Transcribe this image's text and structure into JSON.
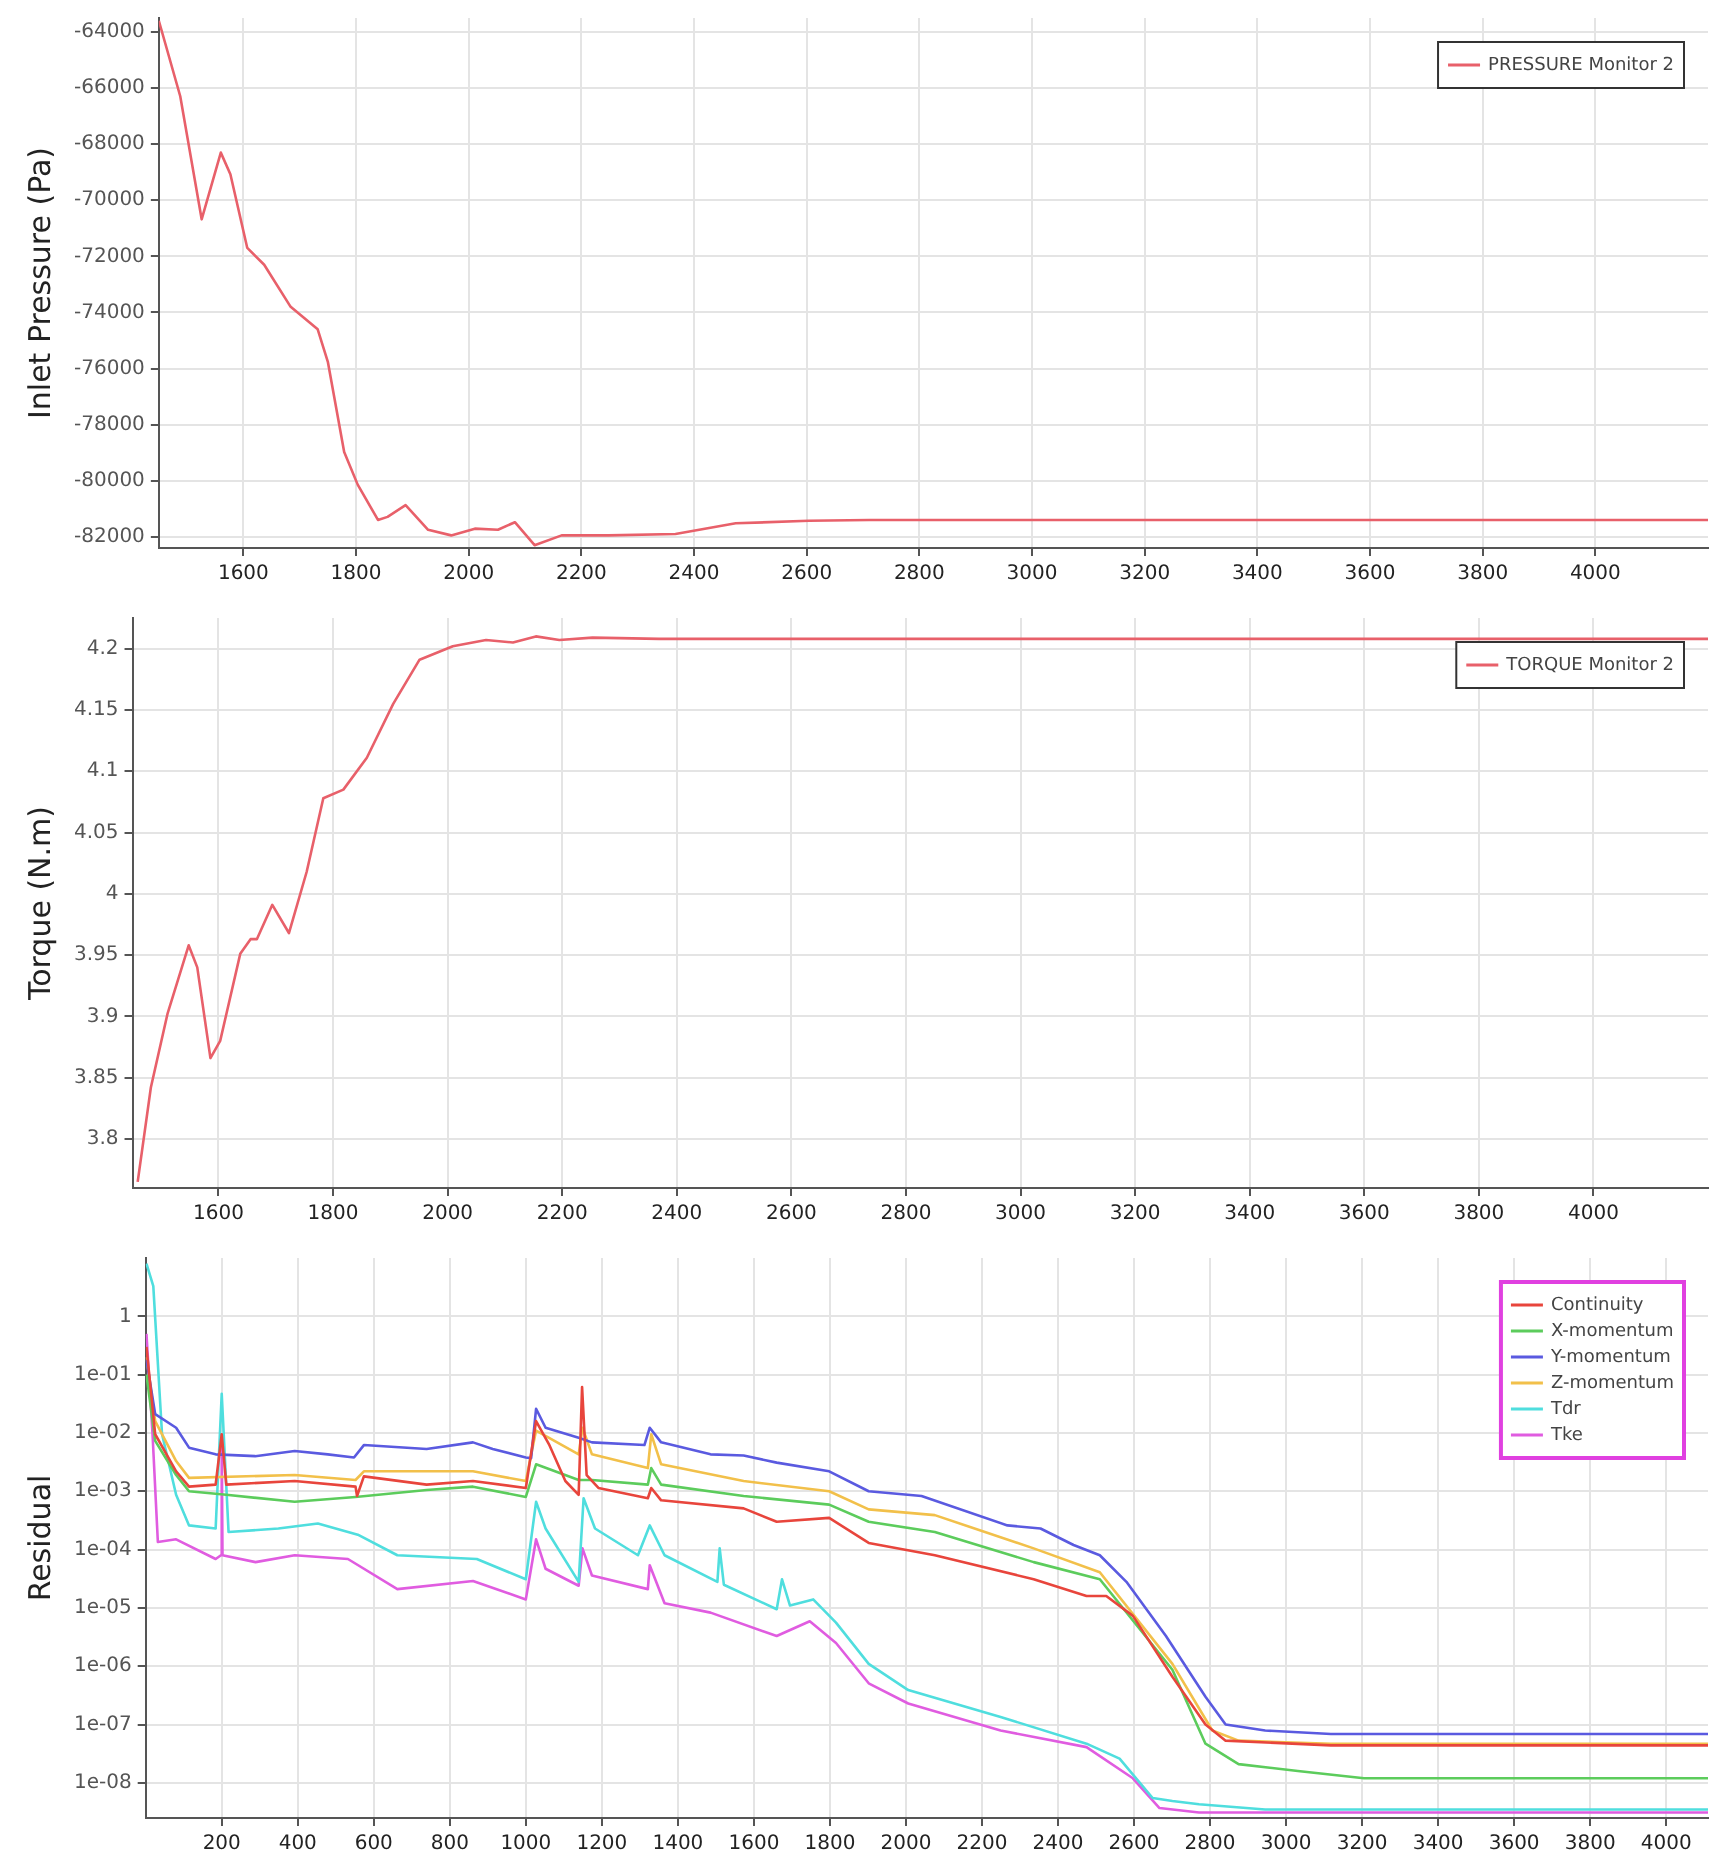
{
  "chart_data": [
    {
      "type": "line",
      "ylabel": "Inlet Pressure (Pa)",
      "xlim": [
        1450,
        4200
      ],
      "xticks": [
        1600,
        1800,
        2000,
        2200,
        2400,
        2600,
        2800,
        3000,
        3200,
        3400,
        3600,
        3800,
        4000
      ],
      "ylim": [
        -82400,
        -63500
      ],
      "yticks": [
        -82000,
        -80000,
        -78000,
        -76000,
        -74000,
        -72000,
        -70000,
        -68000,
        -66000,
        -64000
      ],
      "grid": true,
      "legend": "top right",
      "marker": "none",
      "series": [
        {
          "name": "PRESSURE Monitor 2",
          "color": "#e8606a",
          "x": [
            1450,
            1488,
            1526,
            1560,
            1577,
            1607,
            1637,
            1684,
            1732,
            1750,
            1779,
            1803,
            1839,
            1856,
            1888,
            1928,
            1969,
            2011,
            2052,
            2082,
            2117,
            2165,
            2248,
            2367,
            2474,
            2604,
            2711,
            3000,
            3500,
            4200
          ],
          "values": [
            -63600,
            -66290,
            -70680,
            -68300,
            -69070,
            -71700,
            -72300,
            -73800,
            -74600,
            -75760,
            -78980,
            -80140,
            -81400,
            -81290,
            -80870,
            -81750,
            -81950,
            -81710,
            -81750,
            -81480,
            -82300,
            -81950,
            -81950,
            -81900,
            -81520,
            -81430,
            -81400,
            -81400,
            -81400,
            -81400
          ]
        }
      ]
    },
    {
      "type": "line",
      "ylabel": "Torque (N.m)",
      "xlim": [
        1450,
        4200
      ],
      "xticks": [
        1600,
        1800,
        2000,
        2200,
        2400,
        2600,
        2800,
        3000,
        3200,
        3400,
        3600,
        3800,
        4000
      ],
      "ylim": [
        3.76,
        4.225
      ],
      "yticks": [
        3.8,
        3.85,
        3.9,
        3.95,
        4,
        4.05,
        4.1,
        4.15,
        4.2
      ],
      "grid": true,
      "legend": "top right",
      "marker": "none",
      "series": [
        {
          "name": "TORQUE Monitor 2",
          "color": "#e8606a",
          "x": [
            1459,
            1482,
            1511,
            1548,
            1563,
            1586,
            1603,
            1638,
            1656,
            1667,
            1694,
            1723,
            1754,
            1783,
            1818,
            1859,
            1905,
            1951,
            2009,
            2067,
            2114,
            2154,
            2195,
            2253,
            2369,
            3000,
            4200
          ],
          "values": [
            3.765,
            3.842,
            3.902,
            3.958,
            3.94,
            3.866,
            3.88,
            3.951,
            3.963,
            3.963,
            3.991,
            3.968,
            4.018,
            4.078,
            4.085,
            4.111,
            4.155,
            4.191,
            4.202,
            4.207,
            4.205,
            4.21,
            4.207,
            4.209,
            4.208,
            4.208,
            4.208
          ]
        }
      ]
    },
    {
      "type": "line",
      "ylabel": "Residual",
      "log": "y",
      "xlim": [
        0,
        4110
      ],
      "xticks": [
        200,
        400,
        600,
        800,
        1000,
        1200,
        1400,
        1600,
        1800,
        2000,
        2200,
        2400,
        2600,
        2800,
        3000,
        3200,
        3400,
        3600,
        3800,
        4000
      ],
      "ylim": [
        2.5e-09,
        10
      ],
      "yticks": [
        {
          "value": 1e-08,
          "label": "1e-08"
        },
        {
          "value": 1e-07,
          "label": "1e-07"
        },
        {
          "value": 1e-06,
          "label": "1e-06"
        },
        {
          "value": 1e-05,
          "label": "1e-05"
        },
        {
          "value": 0.0001,
          "label": "1e-04"
        },
        {
          "value": 0.001,
          "label": "1e-03"
        },
        {
          "value": 0.01,
          "label": "1e-02"
        },
        {
          "value": 0.1,
          "label": "1e-01"
        },
        1
      ],
      "grid": true,
      "legend": "top right",
      "marker": "none",
      "series": [
        {
          "name": "Continuity",
          "color": "#e8453c",
          "x": [
            2,
            25,
            80,
            114,
            184,
            200,
            212,
            392,
            552,
            556,
            574,
            739,
            861,
            1000,
            1027,
            1061,
            1104,
            1139,
            1148,
            1160,
            1191,
            1321,
            1330,
            1356,
            1573,
            1660,
            1798,
            1902,
            2076,
            2336,
            2475,
            2527,
            2597,
            2701,
            2788,
            2841,
            3118,
            4110
          ],
          "values": [
            0.3,
            0.0095,
            0.0022,
            0.0012,
            0.0013,
            0.0095,
            0.0013,
            0.0015,
            0.0012,
            0.00083,
            0.0018,
            0.0013,
            0.0015,
            0.00114,
            0.016,
            0.0064,
            0.0015,
            0.00087,
            0.061,
            0.0019,
            0.00114,
            0.00076,
            0.00114,
            0.0007,
            0.00051,
            0.0003,
            0.00035,
            0.00013,
            8e-05,
            3.1e-05,
            1.6e-05,
            1.6e-05,
            7.3e-06,
            6.6e-07,
            1e-07,
            5.3e-08,
            4.4e-08,
            4.4e-08
          ]
        },
        {
          "name": "X-momentum",
          "color": "#5ccc5c",
          "x": [
            2,
            25,
            80,
            114,
            212,
            392,
            552,
            739,
            861,
            1000,
            1027,
            1139,
            1174,
            1321,
            1330,
            1356,
            1573,
            1798,
            1902,
            2076,
            2336,
            2510,
            2701,
            2788,
            2875,
            3031,
            3205,
            4110
          ],
          "values": [
            0.1,
            0.0073,
            0.0019,
            0.001,
            0.00087,
            0.00066,
            0.0008,
            0.00105,
            0.0012,
            0.0008,
            0.0029,
            0.00156,
            0.00156,
            0.0013,
            0.0025,
            0.0013,
            0.00083,
            0.00059,
            0.0003,
            0.0002,
            6.1e-05,
            3.1e-05,
            8.7e-07,
            4.7e-08,
            2.1e-08,
            1.6e-08,
            1.2e-08,
            1.2e-08
          ]
        },
        {
          "name": "Y-momentum",
          "color": "#5a5ae0",
          "x": [
            2,
            25,
            80,
            114,
            184,
            288,
            392,
            479,
            548,
            574,
            739,
            861,
            913,
            1000,
            1014,
            1027,
            1052,
            1139,
            1174,
            1312,
            1326,
            1356,
            1486,
            1573,
            1660,
            1798,
            1902,
            2041,
            2267,
            2354,
            2441,
            2510,
            2580,
            2684,
            2788,
            2841,
            2945,
            3118,
            4110
          ],
          "values": [
            0.18,
            0.021,
            0.0123,
            0.0056,
            0.0043,
            0.004,
            0.0049,
            0.0043,
            0.0038,
            0.0062,
            0.0053,
            0.0069,
            0.0053,
            0.0038,
            0.0037,
            0.026,
            0.0123,
            0.0083,
            0.0069,
            0.0062,
            0.0123,
            0.0069,
            0.0043,
            0.0041,
            0.0031,
            0.0022,
            0.001,
            0.00083,
            0.00026,
            0.00023,
            0.00012,
            8e-05,
            2.8e-05,
            3.3e-06,
            3e-07,
            1e-07,
            7.9e-08,
            6.9e-08,
            6.9e-08
          ]
        },
        {
          "name": "Z-momentum",
          "color": "#f2c04a",
          "x": [
            2,
            25,
            80,
            114,
            392,
            552,
            574,
            861,
            1000,
            1027,
            1139,
            1149,
            1174,
            1321,
            1330,
            1356,
            1573,
            1798,
            1902,
            2076,
            2336,
            2510,
            2701,
            2806,
            2875,
            3118,
            4110
          ],
          "values": [
            0.2,
            0.016,
            0.0033,
            0.0017,
            0.0019,
            0.00156,
            0.0022,
            0.0022,
            0.0015,
            0.011,
            0.0043,
            0.0123,
            0.0043,
            0.0025,
            0.0095,
            0.0029,
            0.0015,
            0.001,
            0.00049,
            0.00039,
            0.000105,
            4.1e-05,
            1.1e-06,
            7.9e-08,
            5.3e-08,
            4.7e-08,
            4.7e-08
          ]
        },
        {
          "name": "Tdr",
          "color": "#4fdede",
          "x": [
            2,
            20,
            43,
            80,
            114,
            184,
            200,
            218,
            349,
            453,
            558,
            662,
            871,
            1000,
            1027,
            1052,
            1139,
            1152,
            1182,
            1295,
            1326,
            1365,
            1504,
            1510,
            1521,
            1660,
            1674,
            1695,
            1756,
            1816,
            1902,
            2006,
            2249,
            2475,
            2562,
            2649,
            2701,
            2771,
            2945,
            4110
          ],
          "values": [
            8,
            3.3,
            0.0095,
            0.00087,
            0.00026,
            0.00023,
            0.047,
            0.0002,
            0.00023,
            0.00028,
            0.00018,
            8e-05,
            6.9e-05,
            3.1e-05,
            0.00066,
            0.00023,
            2.8e-05,
            0.00076,
            0.00023,
            8e-05,
            0.00026,
            8e-05,
            2.8e-05,
            0.000105,
            2.5e-05,
            9.5e-06,
            3.1e-05,
            1.1e-05,
            1.4e-05,
            5.6e-06,
            1.1e-06,
            3.9e-07,
            1.35e-07,
            4.7e-08,
            2.6e-08,
            5.5e-09,
            4.9e-09,
            4.3e-09,
            3.5e-09,
            3.5e-09
          ]
        },
        {
          "name": "Tke",
          "color": "#e05ce0",
          "x": [
            2,
            18,
            32,
            80,
            184,
            198,
            200,
            202,
            289,
            392,
            532,
            662,
            861,
            1000,
            1027,
            1052,
            1139,
            1149,
            1174,
            1321,
            1326,
            1365,
            1486,
            1660,
            1747,
            1816,
            1902,
            2006,
            2249,
            2475,
            2597,
            2667,
            2771,
            4110
          ],
          "values": [
            0.5,
            0.0095,
            0.000135,
            0.00015,
            6.9e-05,
            8e-05,
            0.008,
            8e-05,
            6.1e-05,
            8e-05,
            6.9e-05,
            2.1e-05,
            2.9e-05,
            1.4e-05,
            0.00015,
            4.7e-05,
            2.4e-05,
            0.000105,
            3.6e-05,
            2.1e-05,
            5.4e-05,
            1.2e-05,
            8.3e-06,
            3.3e-06,
            5.9e-06,
            2.5e-06,
            5.1e-07,
            2.3e-07,
            7.9e-08,
            4.1e-08,
            1.2e-08,
            3.7e-09,
            3.1e-09,
            3.1e-09
          ]
        }
      ]
    }
  ]
}
